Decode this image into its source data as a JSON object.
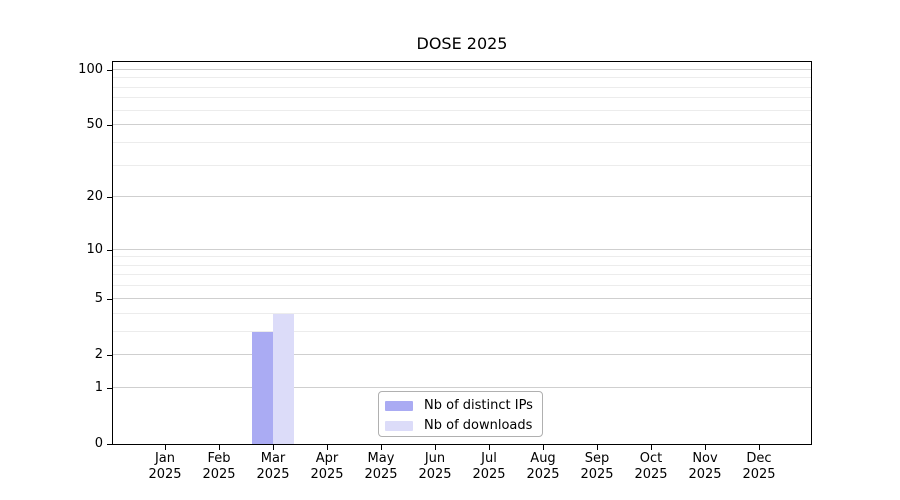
{
  "chart_data": {
    "type": "bar",
    "title": "DOSE 2025",
    "categories": [
      {
        "month": "Jan",
        "year": "2025"
      },
      {
        "month": "Feb",
        "year": "2025"
      },
      {
        "month": "Mar",
        "year": "2025"
      },
      {
        "month": "Apr",
        "year": "2025"
      },
      {
        "month": "May",
        "year": "2025"
      },
      {
        "month": "Jun",
        "year": "2025"
      },
      {
        "month": "Jul",
        "year": "2025"
      },
      {
        "month": "Aug",
        "year": "2025"
      },
      {
        "month": "Sep",
        "year": "2025"
      },
      {
        "month": "Oct",
        "year": "2025"
      },
      {
        "month": "Nov",
        "year": "2025"
      },
      {
        "month": "Dec",
        "year": "2025"
      }
    ],
    "series": [
      {
        "name": "Nb of distinct IPs",
        "color": "#aaabf3",
        "values": [
          0,
          0,
          3,
          0,
          0,
          0,
          0,
          0,
          0,
          0,
          0,
          0
        ]
      },
      {
        "name": "Nb of downloads",
        "color": "#dcdcf9",
        "values": [
          0,
          0,
          4,
          0,
          0,
          0,
          0,
          0,
          0,
          0,
          0,
          0
        ]
      }
    ],
    "xlabel": "",
    "ylabel": "",
    "y_scale": "log10(1+y)",
    "ylim": [
      0,
      111
    ],
    "yticks_major": [
      0,
      1,
      2,
      5,
      10,
      20,
      50,
      100
    ],
    "yticks_minor": [
      3,
      4,
      6,
      7,
      8,
      9,
      30,
      40,
      60,
      70,
      80,
      90
    ],
    "grid": true,
    "legend_position": "lower center"
  },
  "colors": {
    "axis": "#000000",
    "gridline_major": "#cfcfcf",
    "gridline_minor": "#ececec",
    "legend_border": "#b0b0b0",
    "background": "#ffffff"
  }
}
